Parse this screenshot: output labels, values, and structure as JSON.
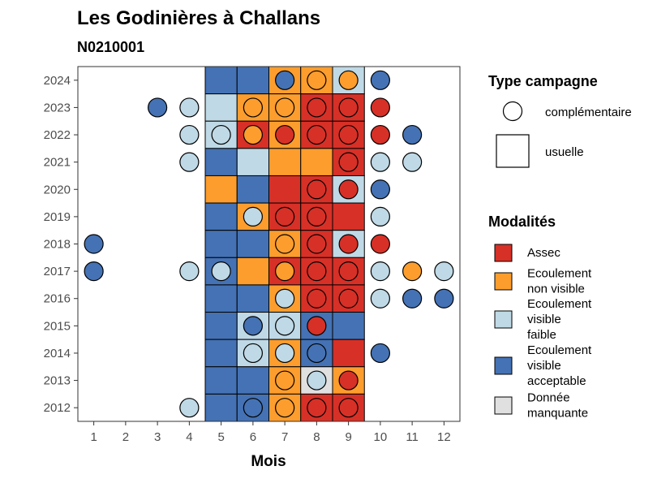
{
  "chart_data": {
    "type": "heatmap",
    "title": "Les Godinières à Challans",
    "subtitle": "N0210001",
    "xlabel": "Mois",
    "ylabel": "",
    "x_ticks": [
      1,
      2,
      3,
      4,
      5,
      6,
      7,
      8,
      9,
      10,
      11,
      12
    ],
    "y_ticks": [
      2012,
      2013,
      2014,
      2015,
      2016,
      2017,
      2018,
      2019,
      2020,
      2021,
      2022,
      2023,
      2024
    ],
    "xlim": [
      0.5,
      12.5
    ],
    "ylim": [
      2011.5,
      2024.5
    ],
    "grid": false,
    "legend_position": "right",
    "colors": {
      "A": "#d73027",
      "N": "#fc9d2d",
      "F": "#bfd9e6",
      "V": "#4472b4",
      "M": "#e0e0e0"
    },
    "legend": {
      "campaign_title": "Type campagne",
      "campaign_items": [
        {
          "shape": "circle",
          "label": "complémentaire"
        },
        {
          "shape": "square",
          "label": "usuelle"
        }
      ],
      "modalities_title": "Modalités",
      "modality_items": [
        {
          "key": "A",
          "lines": [
            "Assec"
          ]
        },
        {
          "key": "N",
          "lines": [
            "Ecoulement",
            "non visible"
          ]
        },
        {
          "key": "F",
          "lines": [
            "Ecoulement",
            "visible",
            "faible"
          ]
        },
        {
          "key": "V",
          "lines": [
            "Ecoulement",
            "visible",
            "acceptable"
          ]
        },
        {
          "key": "M",
          "lines": [
            "Donnée",
            "manquante"
          ]
        }
      ]
    },
    "usual_campaigns": [
      {
        "year": 2024,
        "months": [
          "V",
          "V",
          "N",
          "N",
          "F"
        ]
      },
      {
        "year": 2023,
        "months": [
          "F",
          "N",
          "N",
          "A",
          "A"
        ]
      },
      {
        "year": 2022,
        "months": [
          "F",
          "A",
          "N",
          "A",
          "A"
        ]
      },
      {
        "year": 2021,
        "months": [
          "V",
          "F",
          "N",
          "N",
          "A"
        ]
      },
      {
        "year": 2020,
        "months": [
          "N",
          "V",
          "A",
          "A",
          "F"
        ]
      },
      {
        "year": 2019,
        "months": [
          "V",
          "N",
          "A",
          "A",
          "A"
        ]
      },
      {
        "year": 2018,
        "months": [
          "V",
          "V",
          "N",
          "A",
          "F"
        ]
      },
      {
        "year": 2017,
        "months": [
          "V",
          "N",
          "A",
          "A",
          "A"
        ]
      },
      {
        "year": 2016,
        "months": [
          "V",
          "V",
          "N",
          "A",
          "A"
        ]
      },
      {
        "year": 2015,
        "months": [
          "V",
          "F",
          "F",
          "V",
          "V"
        ]
      },
      {
        "year": 2014,
        "months": [
          "V",
          "F",
          "N",
          "V",
          "A"
        ]
      },
      {
        "year": 2013,
        "months": [
          "V",
          "V",
          "N",
          "M",
          "N"
        ]
      },
      {
        "year": 2012,
        "months": [
          "V",
          "V",
          "N",
          "A",
          "A"
        ]
      }
    ],
    "usual_months": [
      5,
      6,
      7,
      8,
      9
    ],
    "complementary_campaigns": [
      {
        "year": 2024,
        "month": 7,
        "value": "V"
      },
      {
        "year": 2024,
        "month": 8,
        "value": "N"
      },
      {
        "year": 2024,
        "month": 9,
        "value": "N"
      },
      {
        "year": 2024,
        "month": 10,
        "value": "V"
      },
      {
        "year": 2023,
        "month": 3,
        "value": "V"
      },
      {
        "year": 2023,
        "month": 4,
        "value": "F"
      },
      {
        "year": 2023,
        "month": 6,
        "value": "N"
      },
      {
        "year": 2023,
        "month": 7,
        "value": "N"
      },
      {
        "year": 2023,
        "month": 8,
        "value": "A"
      },
      {
        "year": 2023,
        "month": 9,
        "value": "A"
      },
      {
        "year": 2023,
        "month": 10,
        "value": "A"
      },
      {
        "year": 2022,
        "month": 4,
        "value": "F"
      },
      {
        "year": 2022,
        "month": 5,
        "value": "F"
      },
      {
        "year": 2022,
        "month": 6,
        "value": "N"
      },
      {
        "year": 2022,
        "month": 7,
        "value": "A"
      },
      {
        "year": 2022,
        "month": 8,
        "value": "A"
      },
      {
        "year": 2022,
        "month": 9,
        "value": "A"
      },
      {
        "year": 2022,
        "month": 10,
        "value": "A"
      },
      {
        "year": 2022,
        "month": 11,
        "value": "V"
      },
      {
        "year": 2021,
        "month": 4,
        "value": "F"
      },
      {
        "year": 2021,
        "month": 9,
        "value": "A"
      },
      {
        "year": 2021,
        "month": 10,
        "value": "F"
      },
      {
        "year": 2021,
        "month": 11,
        "value": "F"
      },
      {
        "year": 2020,
        "month": 8,
        "value": "A"
      },
      {
        "year": 2020,
        "month": 9,
        "value": "A"
      },
      {
        "year": 2020,
        "month": 10,
        "value": "V"
      },
      {
        "year": 2019,
        "month": 6,
        "value": "F"
      },
      {
        "year": 2019,
        "month": 7,
        "value": "A"
      },
      {
        "year": 2019,
        "month": 8,
        "value": "A"
      },
      {
        "year": 2019,
        "month": 10,
        "value": "F"
      },
      {
        "year": 2018,
        "month": 1,
        "value": "V"
      },
      {
        "year": 2018,
        "month": 7,
        "value": "N"
      },
      {
        "year": 2018,
        "month": 8,
        "value": "A"
      },
      {
        "year": 2018,
        "month": 9,
        "value": "A"
      },
      {
        "year": 2018,
        "month": 10,
        "value": "A"
      },
      {
        "year": 2017,
        "month": 1,
        "value": "V"
      },
      {
        "year": 2017,
        "month": 4,
        "value": "F"
      },
      {
        "year": 2017,
        "month": 5,
        "value": "F"
      },
      {
        "year": 2017,
        "month": 7,
        "value": "N"
      },
      {
        "year": 2017,
        "month": 8,
        "value": "A"
      },
      {
        "year": 2017,
        "month": 9,
        "value": "A"
      },
      {
        "year": 2017,
        "month": 10,
        "value": "F"
      },
      {
        "year": 2017,
        "month": 11,
        "value": "N"
      },
      {
        "year": 2017,
        "month": 12,
        "value": "F"
      },
      {
        "year": 2016,
        "month": 7,
        "value": "F"
      },
      {
        "year": 2016,
        "month": 8,
        "value": "A"
      },
      {
        "year": 2016,
        "month": 9,
        "value": "A"
      },
      {
        "year": 2016,
        "month": 10,
        "value": "F"
      },
      {
        "year": 2016,
        "month": 11,
        "value": "V"
      },
      {
        "year": 2016,
        "month": 12,
        "value": "V"
      },
      {
        "year": 2015,
        "month": 6,
        "value": "V"
      },
      {
        "year": 2015,
        "month": 7,
        "value": "F"
      },
      {
        "year": 2015,
        "month": 8,
        "value": "A"
      },
      {
        "year": 2014,
        "month": 6,
        "value": "F"
      },
      {
        "year": 2014,
        "month": 7,
        "value": "F"
      },
      {
        "year": 2014,
        "month": 8,
        "value": "V"
      },
      {
        "year": 2014,
        "month": 10,
        "value": "V"
      },
      {
        "year": 2013,
        "month": 7,
        "value": "N"
      },
      {
        "year": 2013,
        "month": 8,
        "value": "F"
      },
      {
        "year": 2013,
        "month": 9,
        "value": "A"
      },
      {
        "year": 2012,
        "month": 4,
        "value": "F"
      },
      {
        "year": 2012,
        "month": 6,
        "value": "V"
      },
      {
        "year": 2012,
        "month": 7,
        "value": "N"
      },
      {
        "year": 2012,
        "month": 8,
        "value": "A"
      },
      {
        "year": 2012,
        "month": 9,
        "value": "A"
      }
    ]
  }
}
